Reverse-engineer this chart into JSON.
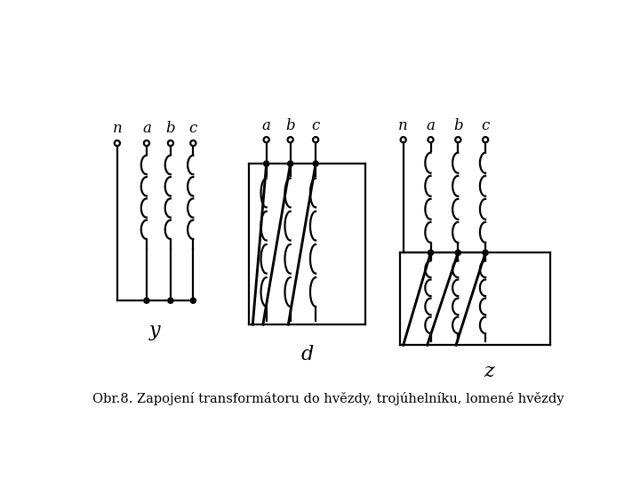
{
  "caption": "Obr.8. Zapojení transformátoru do hvězdy, trojúhelníku, lomené hvězdy",
  "caption_fontsize": 10.5,
  "bg_color": "#ffffff",
  "line_color": "#000000",
  "lw": 1.6,
  "y_label": "y",
  "d_label": "d",
  "z_label": "z",
  "label_fontsize": 16
}
